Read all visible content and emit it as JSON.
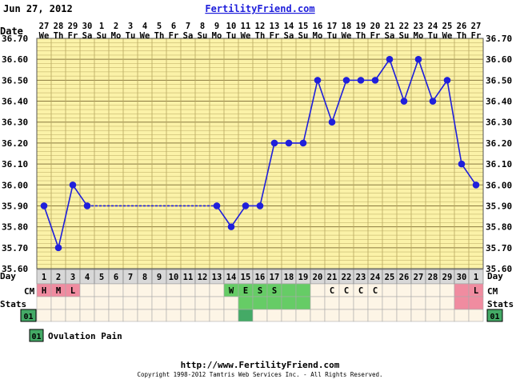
{
  "header": {
    "date": "Jun 27, 2012",
    "brand": "FertilityFriend.com"
  },
  "footer": {
    "url": "http://www.FertilityFriend.com",
    "copyright": "Copyright 1998-2012 Tamtris Web Services Inc. - All Rights Reserved."
  },
  "labels": {
    "date": "Date",
    "day": "Day",
    "cm": "CM",
    "stats": "Stats"
  },
  "legend": {
    "code": "01",
    "text": "Ovulation Pain"
  },
  "colors": {
    "line": "#1f1fdb",
    "plot_bg": "#fbf2a8",
    "grid": "#b8a860",
    "day_bg": "#d8d8d8",
    "cell_bg": "#fdf5e6",
    "cm_pink": "#f08ca0",
    "cm_green": "#66cc66",
    "ov_green": "#44aa66"
  },
  "chart_data": {
    "type": "line",
    "y_unit": "°C temperature",
    "ylim": [
      35.6,
      36.7
    ],
    "yticks": [
      "36.70",
      "36.60",
      "36.50",
      "36.40",
      "36.30",
      "36.20",
      "36.10",
      "36.00",
      "35.90",
      "35.80",
      "35.70",
      "35.60"
    ],
    "dates": [
      "27",
      "28",
      "29",
      "30",
      "1",
      "2",
      "3",
      "4",
      "5",
      "6",
      "7",
      "8",
      "9",
      "10",
      "11",
      "12",
      "13",
      "14",
      "15",
      "16",
      "17",
      "18",
      "19",
      "20",
      "21",
      "22",
      "23",
      "24",
      "25",
      "26",
      "27"
    ],
    "weekdays": [
      "We",
      "Th",
      "Fr",
      "Sa",
      "Su",
      "Mo",
      "Tu",
      "We",
      "Th",
      "Fr",
      "Sa",
      "Su",
      "Mo",
      "Tu",
      "We",
      "Th",
      "Fr",
      "Sa",
      "Su",
      "Mo",
      "Tu",
      "We",
      "Th",
      "Fr",
      "Sa",
      "Su",
      "Mo",
      "Tu",
      "We",
      "Th",
      "Fr"
    ],
    "cycle_days": [
      "1",
      "2",
      "3",
      "4",
      "5",
      "6",
      "7",
      "8",
      "9",
      "10",
      "11",
      "12",
      "13",
      "14",
      "15",
      "16",
      "17",
      "18",
      "19",
      "20",
      "21",
      "22",
      "23",
      "24",
      "25",
      "26",
      "27",
      "28",
      "29",
      "30",
      "1"
    ],
    "temps": [
      35.9,
      35.7,
      36.0,
      35.9,
      null,
      null,
      null,
      null,
      null,
      null,
      null,
      null,
      35.9,
      35.8,
      35.9,
      35.9,
      36.2,
      36.2,
      36.2,
      36.5,
      36.3,
      36.5,
      36.5,
      36.5,
      36.6,
      36.4,
      36.6,
      36.4,
      36.5,
      36.1,
      36.0
    ],
    "cm": [
      "H",
      "M",
      "L",
      "",
      "",
      "",
      "",
      "",
      "",
      "",
      "",
      "",
      "",
      "W",
      "E",
      "S",
      "S",
      "",
      "",
      "",
      "C",
      "C",
      "C",
      "C",
      "",
      "",
      "",
      "",
      "",
      "",
      "L"
    ],
    "cm_colors": [
      "pink",
      "pink",
      "pink",
      "",
      "",
      "",
      "",
      "",
      "",
      "",
      "",
      "",
      "",
      "green",
      "green",
      "green",
      "green",
      "green",
      "green",
      "",
      "",
      "",
      "",
      "",
      "",
      "",
      "",
      "",
      "",
      "pink",
      "pink"
    ],
    "stats": [
      "",
      "",
      "",
      "",
      "",
      "",
      "",
      "",
      "",
      "",
      "",
      "",
      "",
      "",
      "01",
      "",
      "",
      "",
      "",
      "",
      "",
      "",
      "",
      "",
      "",
      "",
      "",
      "",
      "",
      "",
      ""
    ]
  }
}
